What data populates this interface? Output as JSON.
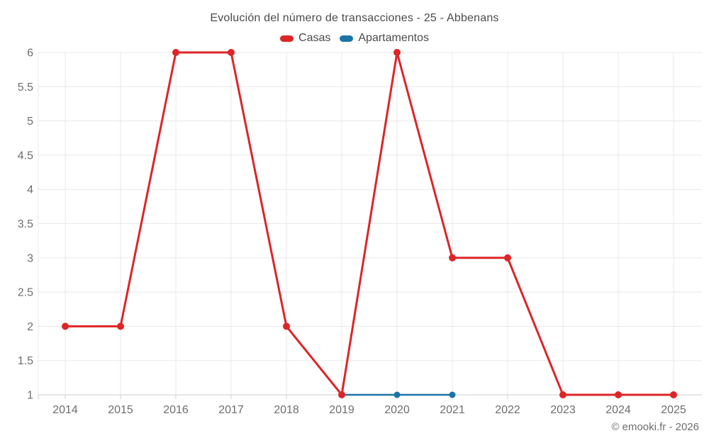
{
  "chart_data": {
    "type": "line",
    "title": "Evolución del número de transacciones - 25 - Abbenans",
    "categories": [
      "2014",
      "2015",
      "2016",
      "2017",
      "2018",
      "2019",
      "2020",
      "2021",
      "2022",
      "2023",
      "2024",
      "2025"
    ],
    "series": [
      {
        "name": "Casas",
        "color": "#dd2527",
        "values": [
          2,
          2,
          6,
          6,
          2,
          1,
          6,
          3,
          3,
          1,
          1,
          1
        ]
      },
      {
        "name": "Apartamentos",
        "color": "#1b74a8",
        "values": [
          null,
          null,
          null,
          null,
          null,
          1,
          1,
          1,
          null,
          null,
          null,
          null
        ]
      }
    ],
    "xlabel": "",
    "ylabel": "",
    "ylim": [
      1,
      6
    ],
    "ytick_step": 0.5,
    "grid": true,
    "legend_position": "top",
    "grid_color": "#e8e8e8",
    "axis_color": "#cfcfcf",
    "tick_label_color": "#6e6e6e"
  },
  "footer": {
    "credit": "© emooki.fr - 2026"
  }
}
